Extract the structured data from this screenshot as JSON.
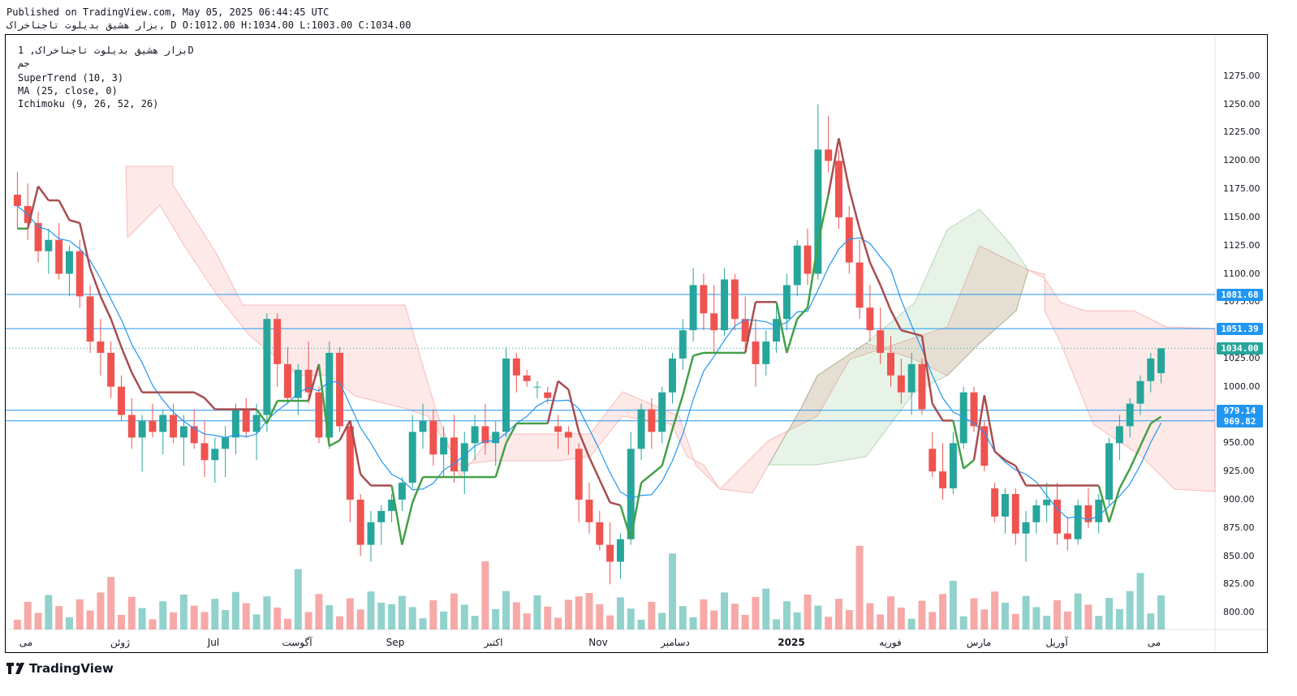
{
  "header": {
    "published": "Published on TradingView.com, May 05, 2025 06:44:45 UTC",
    "ohlc_line": "بزار هشیق بدیلوت تاجناخراک, D O:1012.00 H:1034.00 L:1003.00 C:1034.00"
  },
  "legend": {
    "symbol": "بزار هشیق بدیلوت تاجناخراک, 1D",
    "exchange": "جم",
    "supertrend": "SuperTrend (10, 3)",
    "ma": "MA (25, close, 0)",
    "ichimoku": "Ichimoku (9, 26, 52, 26)"
  },
  "brand": {
    "name": "TradingView",
    "icon": "tradingview-logo-icon"
  },
  "colors": {
    "up": "#26a69a",
    "down": "#ef5350",
    "supertrend_up": "#43a047",
    "supertrend_down": "#a94d4f",
    "ma": "#2196f3",
    "level": "#2196f3",
    "current": "#26a69a"
  },
  "chart_data": {
    "type": "candlestick",
    "y_axis": {
      "range": [
        780,
        1290
      ],
      "ticks": [
        800,
        825,
        850,
        875,
        900,
        925,
        950,
        975,
        1000,
        1025,
        1050,
        1075,
        1100,
        1125,
        1150,
        1175,
        1200,
        1225,
        1250,
        1275
      ]
    },
    "x_labels": [
      "می",
      "ژوئن",
      "Jul",
      "آگوست",
      "Sep",
      "اکتبر",
      "Nov",
      "دسامبر",
      "2025",
      "فوریه",
      "مارس",
      "آوریل",
      "می"
    ],
    "price_badges": [
      {
        "value": "1081.68",
        "kind": "level"
      },
      {
        "value": "1051.39",
        "kind": "level"
      },
      {
        "value": "1034.00",
        "kind": "current"
      },
      {
        "value": "979.14",
        "kind": "level"
      },
      {
        "value": "969.82",
        "kind": "level"
      }
    ],
    "candles": [
      [
        1170,
        1190,
        1140,
        1160
      ],
      [
        1160,
        1180,
        1130,
        1145
      ],
      [
        1145,
        1155,
        1110,
        1120
      ],
      [
        1120,
        1140,
        1100,
        1130
      ],
      [
        1130,
        1145,
        1095,
        1100
      ],
      [
        1100,
        1125,
        1080,
        1120
      ],
      [
        1120,
        1130,
        1070,
        1080
      ],
      [
        1080,
        1090,
        1030,
        1040
      ],
      [
        1040,
        1060,
        1010,
        1030
      ],
      [
        1030,
        1040,
        990,
        1000
      ],
      [
        1000,
        1010,
        970,
        975
      ],
      [
        975,
        990,
        945,
        955
      ],
      [
        955,
        975,
        925,
        970
      ],
      [
        970,
        985,
        955,
        960
      ],
      [
        960,
        980,
        940,
        975
      ],
      [
        975,
        985,
        950,
        955
      ],
      [
        955,
        975,
        930,
        965
      ],
      [
        965,
        980,
        945,
        950
      ],
      [
        950,
        970,
        920,
        935
      ],
      [
        935,
        955,
        915,
        945
      ],
      [
        945,
        965,
        920,
        955
      ],
      [
        955,
        985,
        940,
        980
      ],
      [
        980,
        990,
        955,
        960
      ],
      [
        960,
        985,
        935,
        975
      ],
      [
        975,
        1065,
        960,
        1060
      ],
      [
        1060,
        1065,
        1000,
        1020
      ],
      [
        1020,
        1035,
        985,
        990
      ],
      [
        990,
        1020,
        975,
        1015
      ],
      [
        1015,
        1040,
        985,
        995
      ],
      [
        995,
        1000,
        950,
        955
      ],
      [
        955,
        1040,
        945,
        1030
      ],
      [
        1030,
        1035,
        960,
        965
      ],
      [
        965,
        970,
        880,
        900
      ],
      [
        900,
        905,
        850,
        860
      ],
      [
        860,
        890,
        845,
        880
      ],
      [
        880,
        895,
        860,
        890
      ],
      [
        890,
        905,
        880,
        900
      ],
      [
        900,
        920,
        890,
        915
      ],
      [
        915,
        975,
        910,
        960
      ],
      [
        960,
        985,
        945,
        970
      ],
      [
        970,
        980,
        930,
        940
      ],
      [
        940,
        965,
        920,
        955
      ],
      [
        955,
        975,
        915,
        925
      ],
      [
        925,
        960,
        905,
        950
      ],
      [
        950,
        975,
        935,
        965
      ],
      [
        965,
        985,
        940,
        950
      ],
      [
        950,
        970,
        930,
        960
      ],
      [
        960,
        1035,
        955,
        1025
      ],
      [
        1025,
        1030,
        995,
        1010
      ],
      [
        1010,
        1015,
        1000,
        1005
      ],
      [
        1000,
        1005,
        990,
        1000
      ],
      [
        995,
        1000,
        985,
        990
      ],
      [
        965,
        975,
        945,
        960
      ],
      [
        960,
        965,
        940,
        955
      ],
      [
        945,
        950,
        880,
        900
      ],
      [
        900,
        915,
        870,
        880
      ],
      [
        880,
        890,
        855,
        860
      ],
      [
        860,
        880,
        825,
        845
      ],
      [
        845,
        870,
        830,
        865
      ],
      [
        865,
        960,
        860,
        945
      ],
      [
        945,
        985,
        935,
        980
      ],
      [
        980,
        990,
        945,
        960
      ],
      [
        960,
        1000,
        950,
        995
      ],
      [
        995,
        1030,
        985,
        1025
      ],
      [
        1025,
        1060,
        1015,
        1050
      ],
      [
        1050,
        1105,
        1040,
        1090
      ],
      [
        1090,
        1100,
        1050,
        1065
      ],
      [
        1065,
        1090,
        1030,
        1050
      ],
      [
        1050,
        1105,
        1045,
        1095
      ],
      [
        1095,
        1100,
        1050,
        1060
      ],
      [
        1060,
        1080,
        1030,
        1040
      ],
      [
        1040,
        1060,
        1000,
        1020
      ],
      [
        1020,
        1050,
        1010,
        1040
      ],
      [
        1040,
        1075,
        1030,
        1060
      ],
      [
        1060,
        1100,
        1050,
        1090
      ],
      [
        1090,
        1130,
        1080,
        1125
      ],
      [
        1125,
        1140,
        1090,
        1100
      ],
      [
        1100,
        1250,
        1095,
        1210
      ],
      [
        1210,
        1240,
        1190,
        1200
      ],
      [
        1200,
        1210,
        1140,
        1150
      ],
      [
        1150,
        1160,
        1100,
        1110
      ],
      [
        1110,
        1130,
        1060,
        1070
      ],
      [
        1070,
        1090,
        1040,
        1050
      ],
      [
        1050,
        1070,
        1020,
        1030
      ],
      [
        1030,
        1045,
        1000,
        1010
      ],
      [
        1010,
        1025,
        985,
        995
      ],
      [
        995,
        1030,
        975,
        1020
      ],
      [
        1020,
        1025,
        975,
        980
      ],
      [
        945,
        960,
        920,
        925
      ],
      [
        925,
        950,
        900,
        910
      ],
      [
        910,
        960,
        905,
        950
      ],
      [
        950,
        1000,
        945,
        995
      ],
      [
        995,
        1000,
        960,
        965
      ],
      [
        965,
        970,
        925,
        930
      ],
      [
        910,
        915,
        880,
        885
      ],
      [
        885,
        910,
        870,
        905
      ],
      [
        905,
        910,
        860,
        870
      ],
      [
        870,
        890,
        845,
        880
      ],
      [
        880,
        900,
        870,
        895
      ],
      [
        895,
        915,
        880,
        900
      ],
      [
        900,
        915,
        860,
        870
      ],
      [
        870,
        885,
        855,
        865
      ],
      [
        865,
        900,
        860,
        895
      ],
      [
        895,
        910,
        875,
        880
      ],
      [
        880,
        905,
        870,
        900
      ],
      [
        900,
        955,
        895,
        950
      ],
      [
        950,
        975,
        935,
        965
      ],
      [
        965,
        990,
        955,
        985
      ],
      [
        985,
        1010,
        975,
        1005
      ],
      [
        1005,
        1030,
        995,
        1025
      ],
      [
        1012,
        1034,
        1003,
        1034
      ]
    ]
  }
}
